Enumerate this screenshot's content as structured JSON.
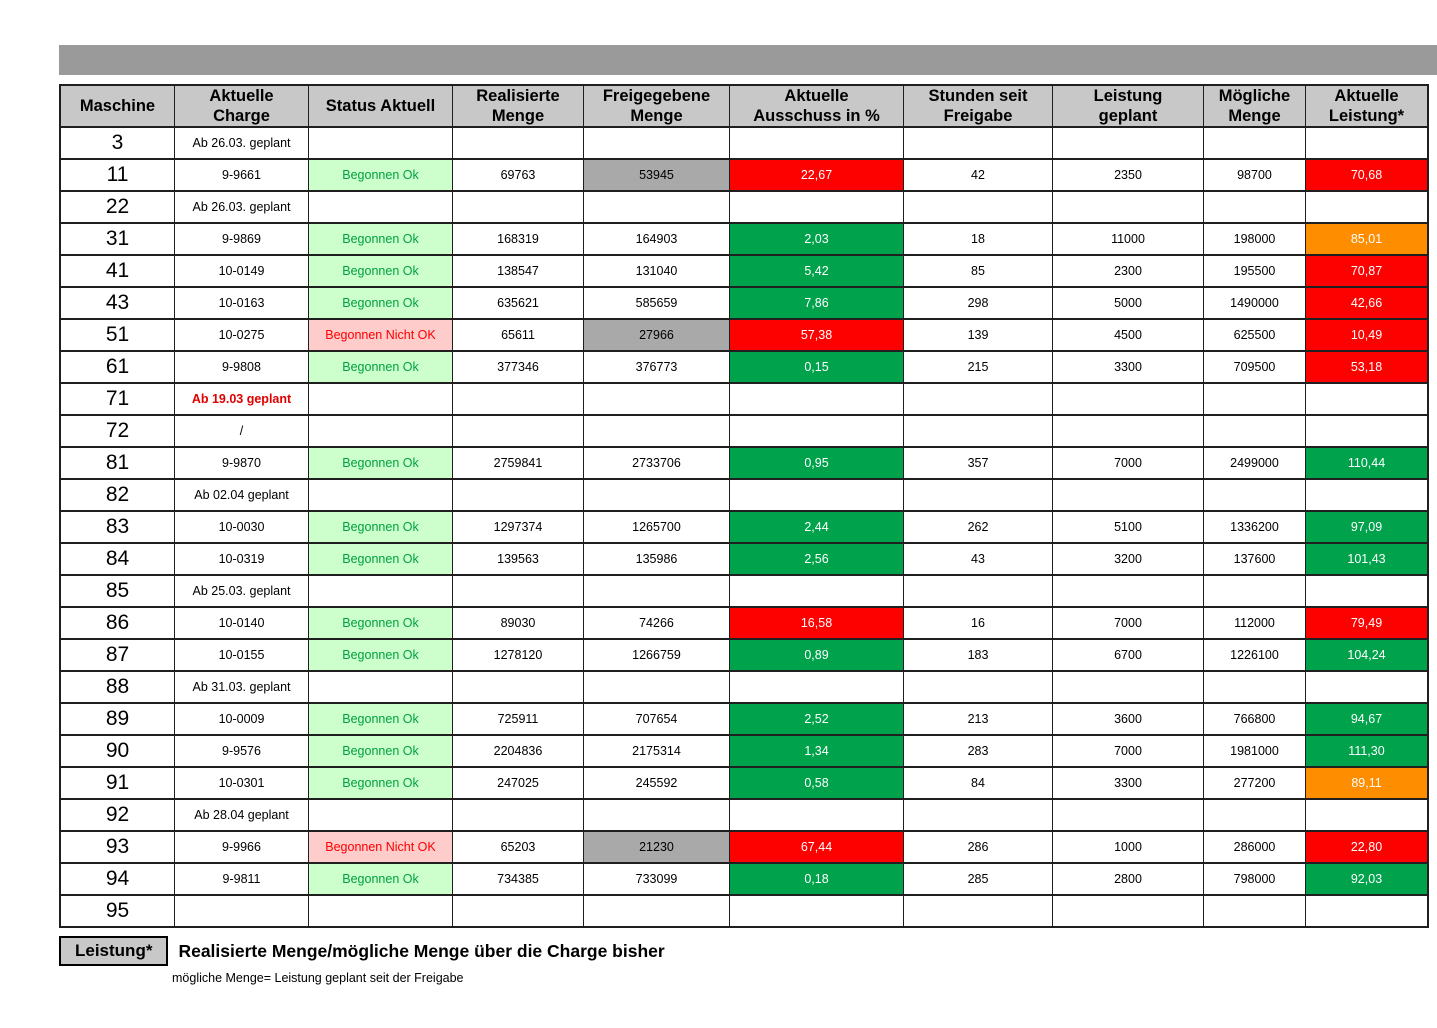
{
  "colors": {
    "top_bar": "#9a9a9a",
    "header_bg": "#c8c8c8",
    "gray_cell": "#a9a9a9",
    "green": "#00a24b",
    "red": "#fd0000",
    "orange": "#ff8d00",
    "status_ok_bg": "#ccffcc",
    "status_ok_text": "#00a141",
    "status_nok_bg": "#ffcccc",
    "status_nok_text": "#fd0000",
    "planned_red_text": "#e00000",
    "legend_box_bg": "#c8c8c8"
  },
  "table": {
    "columns": [
      "Maschine",
      "Aktuelle\nCharge",
      "Status Aktuell",
      "Realisierte\nMenge",
      "Freigegebene\nMenge",
      "Aktuelle\nAusschuss in %",
      "Stunden seit\nFreigabe",
      "Leistung\ngeplant",
      "Mögliche\nMenge",
      "Aktuelle\nLeistung*"
    ],
    "rows": [
      {
        "machine": "3",
        "charge": "Ab 26.03. geplant",
        "charge_variant": "planned",
        "status": "",
        "status_variant": "",
        "realisierte": "",
        "freigegebene": "",
        "freigegebene_gray": false,
        "ausschuss": "",
        "ausschuss_color": "",
        "stunden": "",
        "leistung_geplant": "",
        "moegliche_menge": "",
        "leistung": "",
        "leistung_color": ""
      },
      {
        "machine": "11",
        "charge": "9-9661",
        "charge_variant": "code",
        "status": "Begonnen Ok",
        "status_variant": "ok",
        "realisierte": "69763",
        "freigegebene": "53945",
        "freigegebene_gray": true,
        "ausschuss": "22,67",
        "ausschuss_color": "red",
        "stunden": "42",
        "leistung_geplant": "2350",
        "moegliche_menge": "98700",
        "leistung": "70,68",
        "leistung_color": "red"
      },
      {
        "machine": "22",
        "charge": "Ab 26.03. geplant",
        "charge_variant": "planned",
        "status": "",
        "status_variant": "",
        "realisierte": "",
        "freigegebene": "",
        "freigegebene_gray": false,
        "ausschuss": "",
        "ausschuss_color": "",
        "stunden": "",
        "leistung_geplant": "",
        "moegliche_menge": "",
        "leistung": "",
        "leistung_color": ""
      },
      {
        "machine": "31",
        "charge": "9-9869",
        "charge_variant": "code",
        "status": "Begonnen Ok",
        "status_variant": "ok",
        "realisierte": "168319",
        "freigegebene": "164903",
        "freigegebene_gray": false,
        "ausschuss": "2,03",
        "ausschuss_color": "green",
        "stunden": "18",
        "leistung_geplant": "11000",
        "moegliche_menge": "198000",
        "leistung": "85,01",
        "leistung_color": "orange"
      },
      {
        "machine": "41",
        "charge": "10-0149",
        "charge_variant": "code",
        "status": "Begonnen Ok",
        "status_variant": "ok",
        "realisierte": "138547",
        "freigegebene": "131040",
        "freigegebene_gray": false,
        "ausschuss": "5,42",
        "ausschuss_color": "green",
        "stunden": "85",
        "leistung_geplant": "2300",
        "moegliche_menge": "195500",
        "leistung": "70,87",
        "leistung_color": "red"
      },
      {
        "machine": "43",
        "charge": "10-0163",
        "charge_variant": "code",
        "status": "Begonnen Ok",
        "status_variant": "ok",
        "realisierte": "635621",
        "freigegebene": "585659",
        "freigegebene_gray": false,
        "ausschuss": "7,86",
        "ausschuss_color": "green",
        "stunden": "298",
        "leistung_geplant": "5000",
        "moegliche_menge": "1490000",
        "leistung": "42,66",
        "leistung_color": "red"
      },
      {
        "machine": "51",
        "charge": "10-0275",
        "charge_variant": "code",
        "status": "Begonnen Nicht OK",
        "status_variant": "nok",
        "realisierte": "65611",
        "freigegebene": "27966",
        "freigegebene_gray": true,
        "ausschuss": "57,38",
        "ausschuss_color": "red",
        "stunden": "139",
        "leistung_geplant": "4500",
        "moegliche_menge": "625500",
        "leistung": "10,49",
        "leistung_color": "red"
      },
      {
        "machine": "61",
        "charge": "9-9808",
        "charge_variant": "code",
        "status": "Begonnen Ok",
        "status_variant": "ok",
        "realisierte": "377346",
        "freigegebene": "376773",
        "freigegebene_gray": false,
        "ausschuss": "0,15",
        "ausschuss_color": "green",
        "stunden": "215",
        "leistung_geplant": "3300",
        "moegliche_menge": "709500",
        "leistung": "53,18",
        "leistung_color": "red"
      },
      {
        "machine": "71",
        "charge": "Ab 19.03 geplant",
        "charge_variant": "planned-red",
        "status": "",
        "status_variant": "",
        "realisierte": "",
        "freigegebene": "",
        "freigegebene_gray": false,
        "ausschuss": "",
        "ausschuss_color": "",
        "stunden": "",
        "leistung_geplant": "",
        "moegliche_menge": "",
        "leistung": "",
        "leistung_color": ""
      },
      {
        "machine": "72",
        "charge": "/",
        "charge_variant": "slash",
        "status": "",
        "status_variant": "",
        "realisierte": "",
        "freigegebene": "",
        "freigegebene_gray": false,
        "ausschuss": "",
        "ausschuss_color": "",
        "stunden": "",
        "leistung_geplant": "",
        "moegliche_menge": "",
        "leistung": "",
        "leistung_color": ""
      },
      {
        "machine": "81",
        "charge": "9-9870",
        "charge_variant": "code",
        "status": "Begonnen Ok",
        "status_variant": "ok",
        "realisierte": "2759841",
        "freigegebene": "2733706",
        "freigegebene_gray": false,
        "ausschuss": "0,95",
        "ausschuss_color": "green",
        "stunden": "357",
        "leistung_geplant": "7000",
        "moegliche_menge": "2499000",
        "leistung": "110,44",
        "leistung_color": "green"
      },
      {
        "machine": "82",
        "charge": "Ab 02.04 geplant",
        "charge_variant": "planned",
        "status": "",
        "status_variant": "",
        "realisierte": "",
        "freigegebene": "",
        "freigegebene_gray": false,
        "ausschuss": "",
        "ausschuss_color": "",
        "stunden": "",
        "leistung_geplant": "",
        "moegliche_menge": "",
        "leistung": "",
        "leistung_color": ""
      },
      {
        "machine": "83",
        "charge": "10-0030",
        "charge_variant": "code",
        "status": "Begonnen Ok",
        "status_variant": "ok",
        "realisierte": "1297374",
        "freigegebene": "1265700",
        "freigegebene_gray": false,
        "ausschuss": "2,44",
        "ausschuss_color": "green",
        "stunden": "262",
        "leistung_geplant": "5100",
        "moegliche_menge": "1336200",
        "leistung": "97,09",
        "leistung_color": "green"
      },
      {
        "machine": "84",
        "charge": "10-0319",
        "charge_variant": "code",
        "status": "Begonnen Ok",
        "status_variant": "ok",
        "realisierte": "139563",
        "freigegebene": "135986",
        "freigegebene_gray": false,
        "ausschuss": "2,56",
        "ausschuss_color": "green",
        "stunden": "43",
        "leistung_geplant": "3200",
        "moegliche_menge": "137600",
        "leistung": "101,43",
        "leistung_color": "green"
      },
      {
        "machine": "85",
        "charge": "Ab 25.03. geplant",
        "charge_variant": "planned",
        "status": "",
        "status_variant": "",
        "realisierte": "",
        "freigegebene": "",
        "freigegebene_gray": false,
        "ausschuss": "",
        "ausschuss_color": "",
        "stunden": "",
        "leistung_geplant": "",
        "moegliche_menge": "",
        "leistung": "",
        "leistung_color": ""
      },
      {
        "machine": "86",
        "charge": "10-0140",
        "charge_variant": "code",
        "status": "Begonnen Ok",
        "status_variant": "ok",
        "realisierte": "89030",
        "freigegebene": "74266",
        "freigegebene_gray": false,
        "ausschuss": "16,58",
        "ausschuss_color": "red",
        "stunden": "16",
        "leistung_geplant": "7000",
        "moegliche_menge": "112000",
        "leistung": "79,49",
        "leistung_color": "red"
      },
      {
        "machine": "87",
        "charge": "10-0155",
        "charge_variant": "code",
        "status": "Begonnen Ok",
        "status_variant": "ok",
        "realisierte": "1278120",
        "freigegebene": "1266759",
        "freigegebene_gray": false,
        "ausschuss": "0,89",
        "ausschuss_color": "green",
        "stunden": "183",
        "leistung_geplant": "6700",
        "moegliche_menge": "1226100",
        "leistung": "104,24",
        "leistung_color": "green"
      },
      {
        "machine": "88",
        "charge": "Ab 31.03. geplant",
        "charge_variant": "planned",
        "status": "",
        "status_variant": "",
        "realisierte": "",
        "freigegebene": "",
        "freigegebene_gray": false,
        "ausschuss": "",
        "ausschuss_color": "",
        "stunden": "",
        "leistung_geplant": "",
        "moegliche_menge": "",
        "leistung": "",
        "leistung_color": ""
      },
      {
        "machine": "89",
        "charge": "10-0009",
        "charge_variant": "code",
        "status": "Begonnen Ok",
        "status_variant": "ok",
        "realisierte": "725911",
        "freigegebene": "707654",
        "freigegebene_gray": false,
        "ausschuss": "2,52",
        "ausschuss_color": "green",
        "stunden": "213",
        "leistung_geplant": "3600",
        "moegliche_menge": "766800",
        "leistung": "94,67",
        "leistung_color": "green"
      },
      {
        "machine": "90",
        "charge": "9-9576",
        "charge_variant": "code",
        "status": "Begonnen Ok",
        "status_variant": "ok",
        "realisierte": "2204836",
        "freigegebene": "2175314",
        "freigegebene_gray": false,
        "ausschuss": "1,34",
        "ausschuss_color": "green",
        "stunden": "283",
        "leistung_geplant": "7000",
        "moegliche_menge": "1981000",
        "leistung": "111,30",
        "leistung_color": "green"
      },
      {
        "machine": "91",
        "charge": "10-0301",
        "charge_variant": "code",
        "status": "Begonnen Ok",
        "status_variant": "ok",
        "realisierte": "247025",
        "freigegebene": "245592",
        "freigegebene_gray": false,
        "ausschuss": "0,58",
        "ausschuss_color": "green",
        "stunden": "84",
        "leistung_geplant": "3300",
        "moegliche_menge": "277200",
        "leistung": "89,11",
        "leistung_color": "orange"
      },
      {
        "machine": "92",
        "charge": "Ab 28.04 geplant",
        "charge_variant": "planned",
        "status": "",
        "status_variant": "",
        "realisierte": "",
        "freigegebene": "",
        "freigegebene_gray": false,
        "ausschuss": "",
        "ausschuss_color": "",
        "stunden": "",
        "leistung_geplant": "",
        "moegliche_menge": "",
        "leistung": "",
        "leistung_color": ""
      },
      {
        "machine": "93",
        "charge": "9-9966",
        "charge_variant": "code",
        "status": "Begonnen Nicht OK",
        "status_variant": "nok",
        "realisierte": "65203",
        "freigegebene": "21230",
        "freigegebene_gray": true,
        "ausschuss": "67,44",
        "ausschuss_color": "red",
        "stunden": "286",
        "leistung_geplant": "1000",
        "moegliche_menge": "286000",
        "leistung": "22,80",
        "leistung_color": "red"
      },
      {
        "machine": "94",
        "charge": "9-9811",
        "charge_variant": "code",
        "status": "Begonnen Ok",
        "status_variant": "ok",
        "realisierte": "734385",
        "freigegebene": "733099",
        "freigegebene_gray": false,
        "ausschuss": "0,18",
        "ausschuss_color": "green",
        "stunden": "285",
        "leistung_geplant": "2800",
        "moegliche_menge": "798000",
        "leistung": "92,03",
        "leistung_color": "green"
      },
      {
        "machine": "95",
        "charge": "",
        "charge_variant": "",
        "status": "",
        "status_variant": "",
        "realisierte": "",
        "freigegebene": "",
        "freigegebene_gray": false,
        "ausschuss": "",
        "ausschuss_color": "",
        "stunden": "",
        "leistung_geplant": "",
        "moegliche_menge": "",
        "leistung": "",
        "leistung_color": ""
      }
    ]
  },
  "legend": {
    "label": "Leistung*",
    "title": "Realisierte Menge/mögliche Menge über die Charge bisher",
    "subtitle": "mögliche Menge= Leistung geplant seit der Freigabe"
  }
}
